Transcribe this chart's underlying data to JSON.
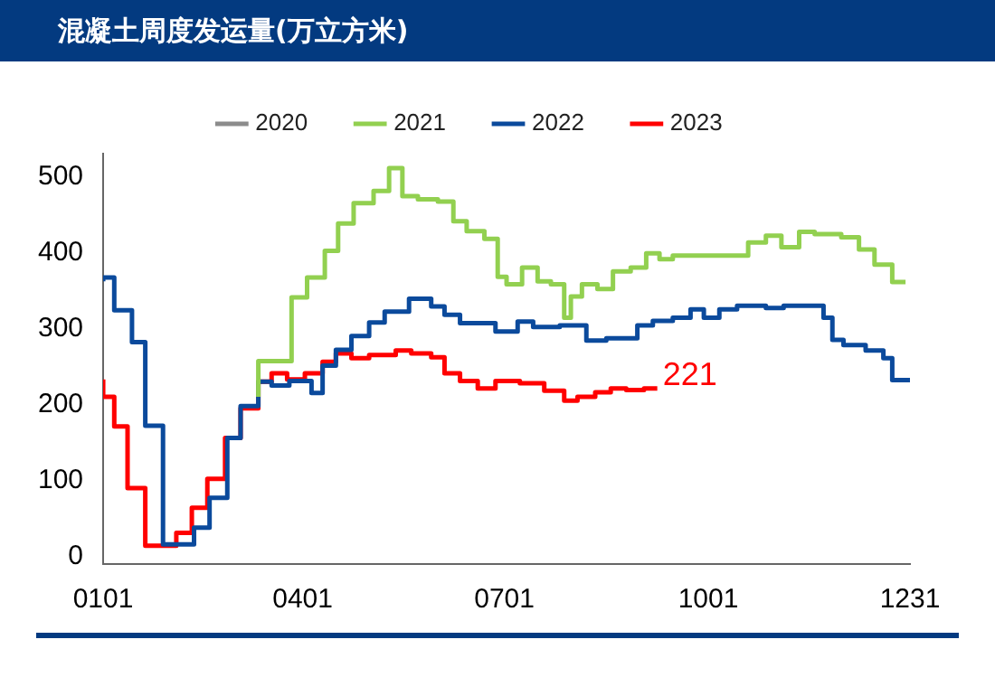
{
  "chart_data": {
    "type": "step",
    "title": "混凝土周度发运量(万立方米)",
    "xlim": [
      "--01-01",
      "--12-31"
    ],
    "xticks": [
      {
        "value": "--01-01",
        "label": "0101"
      },
      {
        "value": "--04-01",
        "label": "0401"
      },
      {
        "value": "--07-01",
        "label": "0701"
      },
      {
        "value": "--10-01",
        "label": "1001"
      },
      {
        "value": "--12-31",
        "label": "1231"
      }
    ],
    "ylim": [
      -10,
      530
    ],
    "yticks": [
      0,
      100,
      200,
      300,
      400,
      500
    ],
    "grid": false,
    "legend": "top",
    "marker": "none",
    "line_style": "solid",
    "series": [
      {
        "name": "2020",
        "color": "#8c8c8c"
      },
      {
        "name": "2021",
        "color": "#92d050",
        "x": [
          "--03-12",
          "--03-27",
          "--04-03",
          "--04-11",
          "--04-17",
          "--04-24",
          "--05-03",
          "--05-10",
          "--05-16",
          "--05-23",
          "--06-01",
          "--06-08",
          "--06-14",
          "--06-22",
          "--06-28",
          "--07-02",
          "--07-09",
          "--07-16",
          "--07-22",
          "--07-28",
          "--07-31",
          "--08-05",
          "--08-12",
          "--08-19",
          "--08-27",
          "--09-03",
          "--09-09",
          "--09-15",
          "--10-19",
          "--10-27",
          "--11-03",
          "--11-11",
          "--11-18",
          "--11-30",
          "--12-08",
          "--12-15",
          "--12-23",
          "--12-29"
        ],
        "values": [
          210,
          257,
          341,
          367,
          402,
          438,
          465,
          481,
          511,
          474,
          470,
          467,
          441,
          428,
          418,
          368,
          358,
          380,
          362,
          358,
          314,
          342,
          358,
          352,
          375,
          380,
          399,
          391,
          396,
          413,
          422,
          407,
          427,
          424,
          420,
          404,
          384,
          361
        ]
      },
      {
        "name": "2022",
        "color": "#0b4a9c",
        "x": [
          "--01-01",
          "--01-06",
          "--01-14",
          "--01-20",
          "--01-28",
          "--02-11",
          "--02-18",
          "--02-26",
          "--03-04",
          "--03-12",
          "--03-18",
          "--03-26",
          "--04-05",
          "--04-10",
          "--04-16",
          "--04-23",
          "--05-01",
          "--05-08",
          "--05-19",
          "--05-29",
          "--06-04",
          "--06-11",
          "--06-27",
          "--07-07",
          "--07-14",
          "--07-26",
          "--08-07",
          "--08-16",
          "--08-30",
          "--09-06",
          "--09-15",
          "--09-23",
          "--09-29",
          "--10-06",
          "--10-14",
          "--10-27",
          "--11-04",
          "--11-22",
          "--11-26",
          "--12-01",
          "--12-11",
          "--12-19",
          "--12-23",
          "--12-31"
        ],
        "values": [
          362,
          367,
          324,
          282,
          172,
          16,
          38,
          77,
          156,
          198,
          230,
          225,
          231,
          215,
          251,
          272,
          290,
          308,
          322,
          339,
          329,
          318,
          307,
          296,
          309,
          302,
          304,
          284,
          287,
          304,
          310,
          314,
          325,
          314,
          325,
          330,
          327,
          330,
          314,
          285,
          278,
          271,
          261,
          232
        ]
      },
      {
        "name": "2023",
        "color": "#ff0000",
        "x": [
          "--01-01",
          "--01-06",
          "--01-12",
          "--01-20",
          "--02-03",
          "--02-10",
          "--02-17",
          "--02-25",
          "--03-04",
          "--03-12",
          "--03-18",
          "--03-25",
          "--04-02",
          "--04-10",
          "--04-16",
          "--04-23",
          "--05-01",
          "--05-13",
          "--05-20",
          "--05-29",
          "--06-04",
          "--06-11",
          "--06-19",
          "--06-27",
          "--07-08",
          "--07-19",
          "--07-28",
          "--08-03",
          "--08-11",
          "--08-18",
          "--08-25",
          "--09-02",
          "--09-08"
        ],
        "values": [
          233,
          210,
          171,
          90,
          14,
          31,
          64,
          102,
          156,
          195,
          230,
          241,
          233,
          241,
          256,
          267,
          261,
          265,
          271,
          267,
          262,
          241,
          231,
          221,
          231,
          228,
          218,
          205,
          210,
          216,
          221,
          219,
          221
        ]
      }
    ],
    "annotations": [
      {
        "text": "221",
        "x": "--09-08",
        "y": 221
      }
    ]
  }
}
